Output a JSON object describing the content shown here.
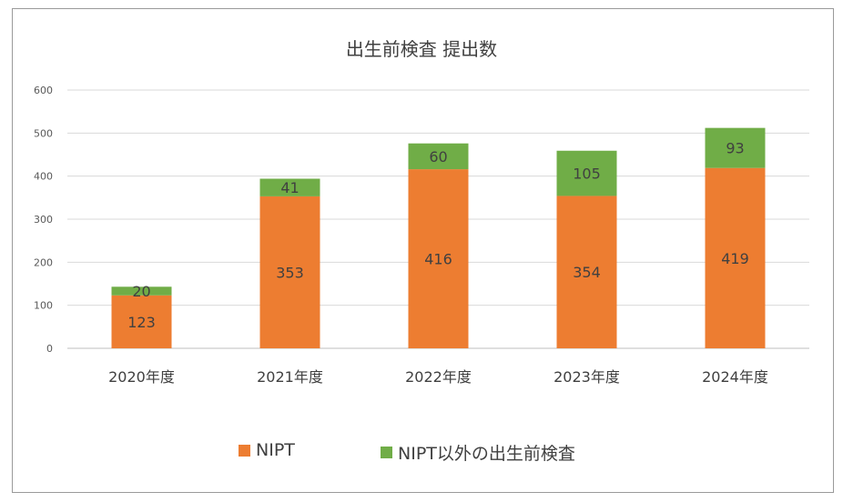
{
  "chart_data": {
    "type": "bar",
    "stacked": true,
    "title": "出生前検査 提出数",
    "categories": [
      "2020年度",
      "2021年度",
      "2022年度",
      "2023年度",
      "2024年度"
    ],
    "series": [
      {
        "name": "NIPT",
        "color": "#ED7D31",
        "values": [
          123,
          353,
          416,
          354,
          419
        ]
      },
      {
        "name": "NIPT以外の出生前検査",
        "color": "#70AD47",
        "values": [
          20,
          41,
          60,
          105,
          93
        ]
      }
    ],
    "ylim": [
      0,
      600
    ],
    "yticks": [
      0,
      100,
      200,
      300,
      400,
      500,
      600
    ],
    "grid": true,
    "legend_position": "bottom"
  }
}
